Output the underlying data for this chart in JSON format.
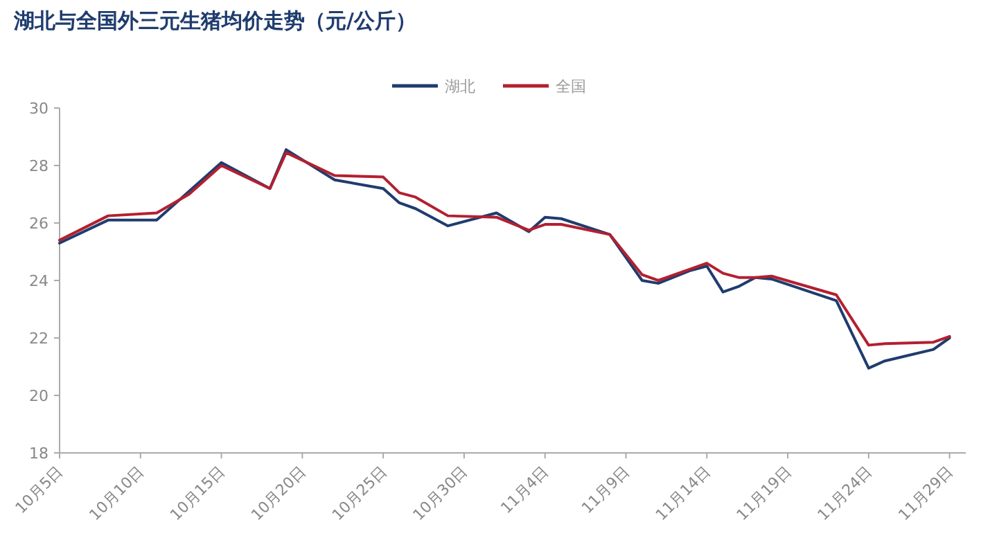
{
  "chart_data": {
    "type": "line",
    "title": "湖北与全国外三元生猪均价走势（元/公斤）",
    "x": [
      "--10-05",
      "--10-08",
      "--10-11",
      "--10-13",
      "--10-15",
      "--10-18",
      "--10-19",
      "--10-22",
      "--10-25",
      "--10-26",
      "--10-27",
      "--10-29",
      "--11-01",
      "--11-03",
      "--11-04",
      "--11-05",
      "--11-08",
      "--11-10",
      "--11-11",
      "--11-13",
      "--11-14",
      "--11-15",
      "--11-16",
      "--11-17",
      "--11-18",
      "--11-22",
      "--11-24",
      "--11-25",
      "--11-28",
      "--11-29"
    ],
    "series": [
      {
        "name": "湖北",
        "color": "#1f3c6e",
        "values": [
          25.3,
          26.1,
          26.1,
          27.1,
          28.1,
          27.2,
          28.55,
          27.5,
          27.2,
          26.7,
          26.5,
          25.9,
          26.35,
          25.7,
          26.2,
          26.15,
          25.6,
          24.0,
          23.9,
          24.35,
          24.5,
          23.6,
          23.8,
          24.1,
          24.05,
          23.3,
          20.95,
          21.2,
          21.6,
          22.0
        ]
      },
      {
        "name": "全国",
        "color": "#b22030",
        "values": [
          25.4,
          26.25,
          26.35,
          27.0,
          28.0,
          27.2,
          28.45,
          27.65,
          27.6,
          27.05,
          26.9,
          26.25,
          26.2,
          25.75,
          25.95,
          25.95,
          25.6,
          24.2,
          24.0,
          24.4,
          24.6,
          24.25,
          24.1,
          24.1,
          24.15,
          23.5,
          21.75,
          21.8,
          21.85,
          22.05
        ]
      }
    ],
    "xlim": [
      "--10-05",
      "--11-30"
    ],
    "xticks": [
      {
        "value": "--10-05",
        "label": "10月5日"
      },
      {
        "value": "--10-10",
        "label": "10月10日"
      },
      {
        "value": "--10-15",
        "label": "10月15日"
      },
      {
        "value": "--10-20",
        "label": "10月20日"
      },
      {
        "value": "--10-25",
        "label": "10月25日"
      },
      {
        "value": "--10-30",
        "label": "10月30日"
      },
      {
        "value": "--11-04",
        "label": "11月4日"
      },
      {
        "value": "--11-09",
        "label": "11月9日"
      },
      {
        "value": "--11-14",
        "label": "11月14日"
      },
      {
        "value": "--11-19",
        "label": "11月19日"
      },
      {
        "value": "--11-24",
        "label": "11月24日"
      },
      {
        "value": "--11-29",
        "label": "11月29日"
      }
    ],
    "ylim": [
      18,
      30
    ],
    "yticks": [
      18,
      20,
      22,
      24,
      26,
      28,
      30
    ],
    "grid": false,
    "legend": "top",
    "marker": "none",
    "line_style": "solid"
  }
}
